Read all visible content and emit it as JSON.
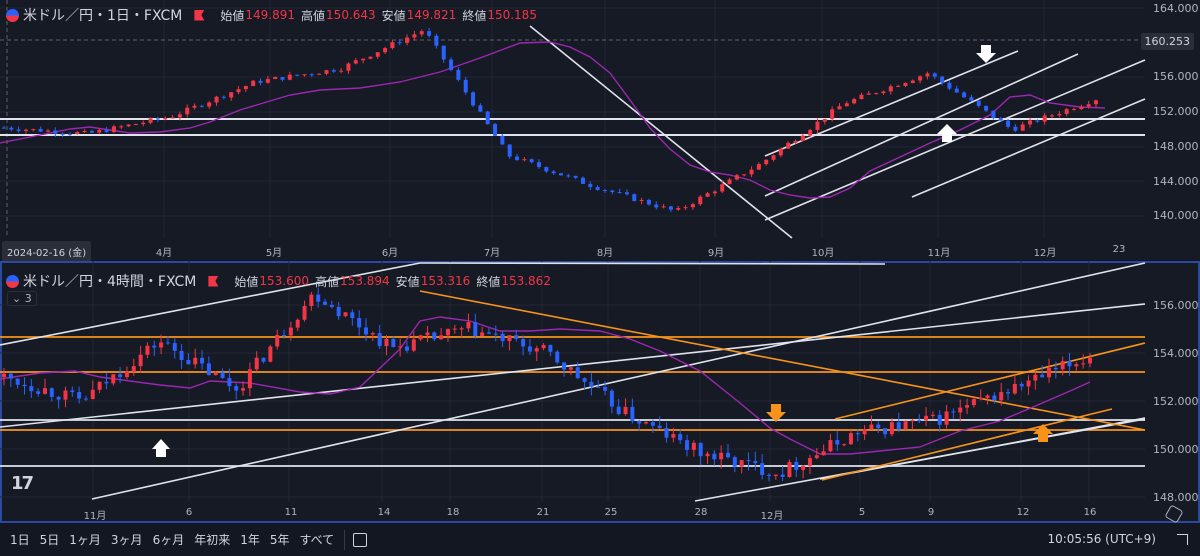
{
  "top_chart": {
    "symbol": "米ドル／円・1日・FXCM",
    "ohlc": {
      "open_label": "始値",
      "open": "149.891",
      "high_label": "高値",
      "high": "150.643",
      "low_label": "安値",
      "low": "149.821",
      "close_label": "終値",
      "close": "150.185"
    },
    "price_ticks": [
      "164.000",
      "160.253",
      "156.000",
      "152.000",
      "148.000",
      "144.000",
      "140.000"
    ],
    "current_price_badge": "160.253",
    "crosshair_date": "2024-02-16 (金)",
    "time_ticks": [
      "4月",
      "5月",
      "6月",
      "7月",
      "8月",
      "9月",
      "10月",
      "11月",
      "12月",
      "23"
    ]
  },
  "bottom_chart": {
    "symbol": "米ドル／円・4時間・FXCM",
    "ohlc": {
      "open_label": "始値",
      "open": "153.600",
      "high_label": "高値",
      "high": "153.894",
      "low_label": "安値",
      "low": "153.316",
      "close_label": "終値",
      "close": "153.862"
    },
    "collapse_label": "⌄ 3",
    "price_ticks": [
      "156.000",
      "154.000",
      "152.000",
      "150.000",
      "148.000"
    ],
    "time_ticks": [
      "11月",
      "6",
      "11",
      "14",
      "18",
      "21",
      "25",
      "28",
      "12月",
      "5",
      "9",
      "12",
      "16"
    ]
  },
  "toolbar": {
    "ranges": [
      "1日",
      "5日",
      "1ヶ月",
      "3ヶ月",
      "6ヶ月",
      "年初来",
      "1年",
      "5年",
      "すべて"
    ],
    "clock": "10:05:56 (UTC+9)"
  },
  "colors": {
    "up": "#f23645",
    "down": "#2962ff",
    "ma": "#9c27b0",
    "trend_white": "#e0e3eb",
    "trend_orange": "#f7931a",
    "background": "#161a25"
  },
  "chart_data": [
    {
      "type": "candlestick",
      "title": "米ドル／円・1日・FXCM",
      "ylim": [
        138,
        165
      ],
      "x_ticks": [
        "4月",
        "5月",
        "6月",
        "7月",
        "8月",
        "9月",
        "10月",
        "11月",
        "12月",
        "23"
      ],
      "ohlc_last": {
        "open": 149.891,
        "high": 150.643,
        "low": 149.821,
        "close": 150.185
      },
      "approx_close_path": [
        {
          "x": "2月",
          "y": 150.2
        },
        {
          "x": "3月",
          "y": 149.5
        },
        {
          "x": "4月",
          "y": 151.5
        },
        {
          "x": "5月",
          "y": 155.5
        },
        {
          "x": "6月",
          "y": 157.0
        },
        {
          "x": "7月",
          "y": 161.5
        },
        {
          "x": "8月",
          "y": 147.0
        },
        {
          "x": "9月",
          "y": 143.5
        },
        {
          "x": "9月中旬",
          "y": 140.5
        },
        {
          "x": "10月",
          "y": 146.0
        },
        {
          "x": "11月",
          "y": 153.0
        },
        {
          "x": "11月中旬",
          "y": 156.5
        },
        {
          "x": "12月",
          "y": 150.0
        },
        {
          "x": "12月中旬",
          "y": 153.5
        }
      ],
      "horizontal_lines": [
        151.4,
        149.2,
        160.253
      ],
      "moving_average": "purple"
    },
    {
      "type": "candlestick",
      "title": "米ドル／円・4時間・FXCM",
      "ylim": [
        147.7,
        156.7
      ],
      "x_ticks": [
        "11月",
        "6",
        "11",
        "14",
        "18",
        "21",
        "25",
        "28",
        "12月",
        "5",
        "9",
        "12",
        "16"
      ],
      "ohlc_last": {
        "open": 153.6,
        "high": 153.894,
        "low": 153.316,
        "close": 153.862
      },
      "approx_close_path": [
        {
          "x": "11月1",
          "y": 153.0
        },
        {
          "x": "11月5",
          "y": 152.0
        },
        {
          "x": "11月7",
          "y": 154.5
        },
        {
          "x": "11月11",
          "y": 152.5
        },
        {
          "x": "11月15",
          "y": 156.5
        },
        {
          "x": "11月18",
          "y": 154.2
        },
        {
          "x": "11月20",
          "y": 155.0
        },
        {
          "x": "11月25",
          "y": 154.0
        },
        {
          "x": "11月28",
          "y": 151.5
        },
        {
          "x": "12月1",
          "y": 149.8
        },
        {
          "x": "12月3",
          "y": 149.0
        },
        {
          "x": "12月5",
          "y": 150.7
        },
        {
          "x": "12月9",
          "y": 151.2
        },
        {
          "x": "12月12",
          "y": 152.5
        },
        {
          "x": "12月16",
          "y": 153.86
        }
      ],
      "horizontal_lines_orange": [
        154.7,
        153.2,
        150.8
      ],
      "horizontal_lines_white": [
        151.1,
        149.2
      ],
      "moving_average": "purple"
    }
  ]
}
